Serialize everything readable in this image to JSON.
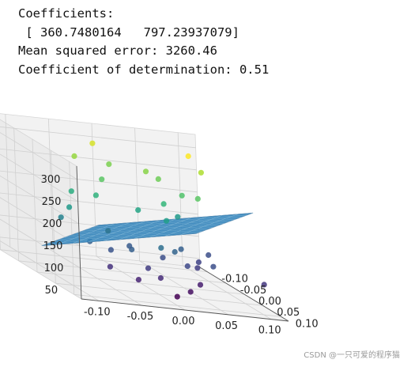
{
  "console": {
    "lines": [
      "Coefficients:",
      " [ 360.7480164   797.23937079]",
      "Mean squared error: 3260.46",
      "Coefficient of determination: 0.51"
    ]
  },
  "watermark": "CSDN @一只可爱的程序猫",
  "chart_data": {
    "type": "scatter3d",
    "title": "",
    "xlabel": "",
    "ylabel": "",
    "zlabel": "",
    "xlim": [
      -0.12,
      0.12
    ],
    "ylim": [
      -0.12,
      0.12
    ],
    "zlim": [
      30,
      330
    ],
    "x_ticks": [
      "-0.10",
      "-0.05",
      "0.00",
      "0.05",
      "0.10"
    ],
    "y_ticks": [
      "-0.10",
      "-0.05",
      "0.00",
      "0.05",
      "0.10"
    ],
    "z_ticks": [
      "50",
      "100",
      "150",
      "200",
      "250",
      "300"
    ],
    "grid": true,
    "colormap": "viridis",
    "plane": {
      "color": "#1f77b4",
      "intercept": 150,
      "coef_x": 360.7480164,
      "coef_y": 797.23937079,
      "x_range": [
        -0.08,
        0.1
      ],
      "y_range": [
        -0.08,
        0.08
      ]
    },
    "points": [
      {
        "x": -0.0,
        "y": -0.12,
        "z": 285
      },
      {
        "x": 0.01,
        "y": -0.1,
        "z": 250
      },
      {
        "x": -0.06,
        "y": -0.04,
        "z": 205
      },
      {
        "x": -0.09,
        "y": 0.0,
        "z": 160
      },
      {
        "x": -0.02,
        "y": -0.05,
        "z": 235
      },
      {
        "x": 0.04,
        "y": -0.07,
        "z": 255
      },
      {
        "x": 0.05,
        "y": -0.06,
        "z": 245
      },
      {
        "x": -0.03,
        "y": -0.1,
        "z": 260
      },
      {
        "x": 0.06,
        "y": -0.02,
        "z": 230
      },
      {
        "x": 0.03,
        "y": 0.0,
        "z": 215
      },
      {
        "x": 0.1,
        "y": -0.06,
        "z": 270
      },
      {
        "x": 0.09,
        "y": -0.07,
        "z": 300
      },
      {
        "x": 0.07,
        "y": 0.0,
        "z": 235
      },
      {
        "x": 0.02,
        "y": 0.03,
        "z": 190
      },
      {
        "x": -0.08,
        "y": 0.0,
        "z": 185
      },
      {
        "x": -0.04,
        "y": -0.02,
        "z": 210
      },
      {
        "x": 0.0,
        "y": 0.06,
        "z": 140
      },
      {
        "x": -0.03,
        "y": 0.05,
        "z": 125
      },
      {
        "x": -0.05,
        "y": 0.04,
        "z": 115
      },
      {
        "x": -0.02,
        "y": 0.02,
        "z": 120
      },
      {
        "x": 0.01,
        "y": 0.04,
        "z": 110
      },
      {
        "x": 0.03,
        "y": 0.06,
        "z": 105
      },
      {
        "x": 0.05,
        "y": 0.04,
        "z": 95
      },
      {
        "x": 0.06,
        "y": 0.02,
        "z": 100
      },
      {
        "x": 0.08,
        "y": 0.0,
        "z": 110
      },
      {
        "x": -0.06,
        "y": 0.06,
        "z": 85
      },
      {
        "x": -0.04,
        "y": 0.09,
        "z": 75
      },
      {
        "x": -0.01,
        "y": 0.08,
        "z": 80
      },
      {
        "x": 0.02,
        "y": 0.09,
        "z": 60
      },
      {
        "x": 0.04,
        "y": 0.07,
        "z": 70
      },
      {
        "x": -0.07,
        "y": 0.03,
        "z": 125
      },
      {
        "x": 0.0,
        "y": 0.1,
        "z": 50
      },
      {
        "x": -0.02,
        "y": 0.07,
        "z": 95
      },
      {
        "x": 0.11,
        "y": 0.08,
        "z": 90
      },
      {
        "x": 0.04,
        "y": 0.02,
        "z": 125
      },
      {
        "x": 0.06,
        "y": 0.06,
        "z": 110
      },
      {
        "x": 0.02,
        "y": 0.05,
        "z": 130
      },
      {
        "x": -0.04,
        "y": 0.01,
        "z": 145
      },
      {
        "x": 0.0,
        "y": 0.0,
        "z": 195
      },
      {
        "x": 0.05,
        "y": -0.01,
        "z": 185
      }
    ]
  }
}
